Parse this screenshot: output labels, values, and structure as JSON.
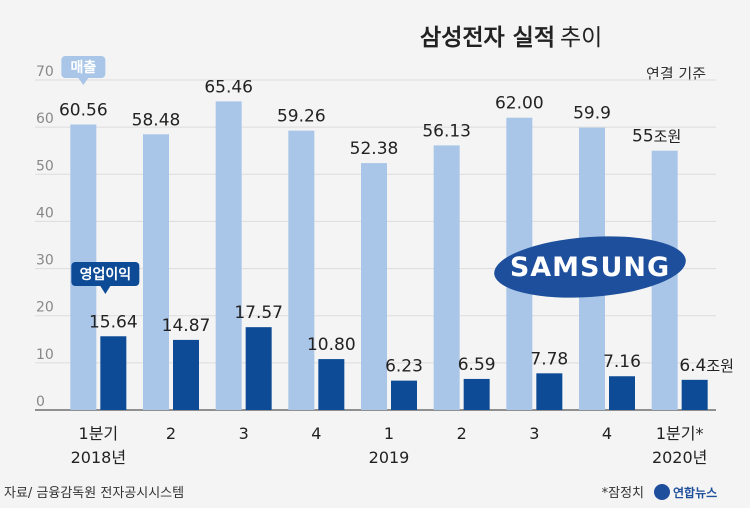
{
  "chart_data": {
    "type": "bar",
    "title": "삼성전자 실적",
    "title_suffix": "추이",
    "basis": "연결 기준",
    "unit_label": "조원",
    "ylim": [
      0,
      70
    ],
    "yticks": [
      0,
      10,
      20,
      30,
      40,
      50,
      60,
      70
    ],
    "categories": [
      "1분기",
      "2",
      "3",
      "4",
      "1",
      "2",
      "3",
      "4",
      "1분기*"
    ],
    "year_labels": [
      {
        "label": "2018년",
        "index": 0
      },
      {
        "label": "2019",
        "index": 4
      },
      {
        "label": "2020년",
        "index": 8
      }
    ],
    "series": [
      {
        "name": "매출",
        "color": "#a9c6e8",
        "values": [
          60.56,
          58.48,
          65.46,
          59.26,
          52.38,
          56.13,
          62.0,
          59.9,
          55
        ],
        "labels": [
          "60.56",
          "58.48",
          "65.46",
          "59.26",
          "52.38",
          "56.13",
          "62.00",
          "59.9",
          "55"
        ]
      },
      {
        "name": "영업이익",
        "color": "#0d4b97",
        "values": [
          15.64,
          14.87,
          17.57,
          10.8,
          6.23,
          6.59,
          7.78,
          7.16,
          6.4
        ],
        "labels": [
          "15.64",
          "14.87",
          "17.57",
          "10.80",
          "6.23",
          "6.59",
          "7.78",
          "7.16",
          "6.4"
        ]
      }
    ],
    "grid": true
  },
  "logo": {
    "text": "SAMSUNG",
    "color": "#1e4f9c"
  },
  "footer": {
    "source": "자료/ 금융감독원 전자공시시스템",
    "note": "*잠정치",
    "brand": "연합뉴스"
  }
}
